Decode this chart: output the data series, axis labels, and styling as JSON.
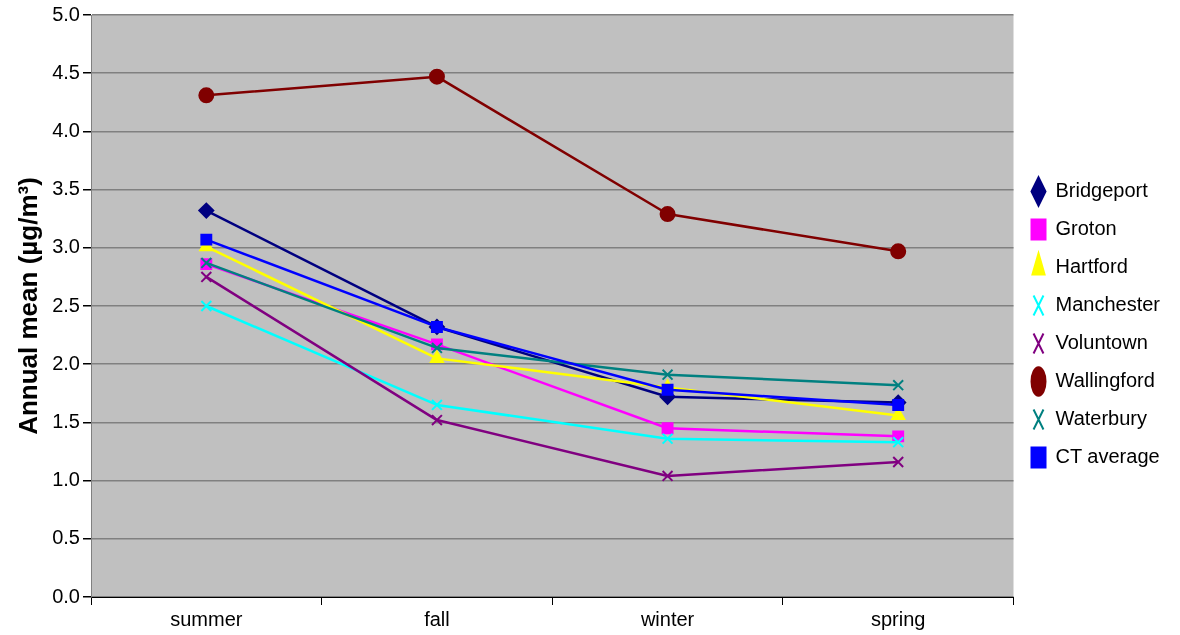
{
  "chart_data": {
    "type": "line",
    "ylabel": "Annual mean (µg/m³)",
    "categories": [
      "summer",
      "fall",
      "winter",
      "spring"
    ],
    "series": [
      {
        "name": "Bridgeport",
        "color": "#000080",
        "marker": "diamond",
        "values": [
          3.32,
          2.32,
          1.72,
          1.67
        ]
      },
      {
        "name": "Groton",
        "color": "#ff00ff",
        "marker": "square",
        "values": [
          2.86,
          2.17,
          1.45,
          1.38
        ]
      },
      {
        "name": "Hartford",
        "color": "#ffff00",
        "marker": "triangle",
        "values": [
          3.01,
          2.05,
          1.8,
          1.56
        ]
      },
      {
        "name": "Manchester",
        "color": "#00ffff",
        "marker": "cross",
        "values": [
          2.5,
          1.65,
          1.36,
          1.33
        ]
      },
      {
        "name": "Voluntown",
        "color": "#800080",
        "marker": "cross",
        "values": [
          2.75,
          1.52,
          1.04,
          1.16
        ]
      },
      {
        "name": "Wallingford",
        "color": "#800000",
        "marker": "circle",
        "values": [
          4.31,
          4.47,
          3.29,
          2.97
        ]
      },
      {
        "name": "Waterbury",
        "color": "#008080",
        "marker": "cross",
        "values": [
          2.87,
          2.14,
          1.91,
          1.82
        ]
      },
      {
        "name": "CT average",
        "color": "#0000ff",
        "marker": "square",
        "values": [
          3.07,
          2.32,
          1.78,
          1.65
        ]
      }
    ],
    "ylim": [
      0,
      5
    ],
    "yticks": [
      {
        "value": 0,
        "label": "0.0"
      },
      {
        "value": 0.5,
        "label": "0.5"
      },
      {
        "value": 1,
        "label": "1.0"
      },
      {
        "value": 1.5,
        "label": "1.5"
      },
      {
        "value": 2,
        "label": "2.0"
      },
      {
        "value": 2.5,
        "label": "2.5"
      },
      {
        "value": 3,
        "label": "3.0"
      },
      {
        "value": 3.5,
        "label": "3.5"
      },
      {
        "value": 4,
        "label": "4.0"
      },
      {
        "value": 4.5,
        "label": "4.5"
      },
      {
        "value": 5,
        "label": "5.0"
      }
    ],
    "grid": "y",
    "legend": "right",
    "line_style": "solid"
  }
}
